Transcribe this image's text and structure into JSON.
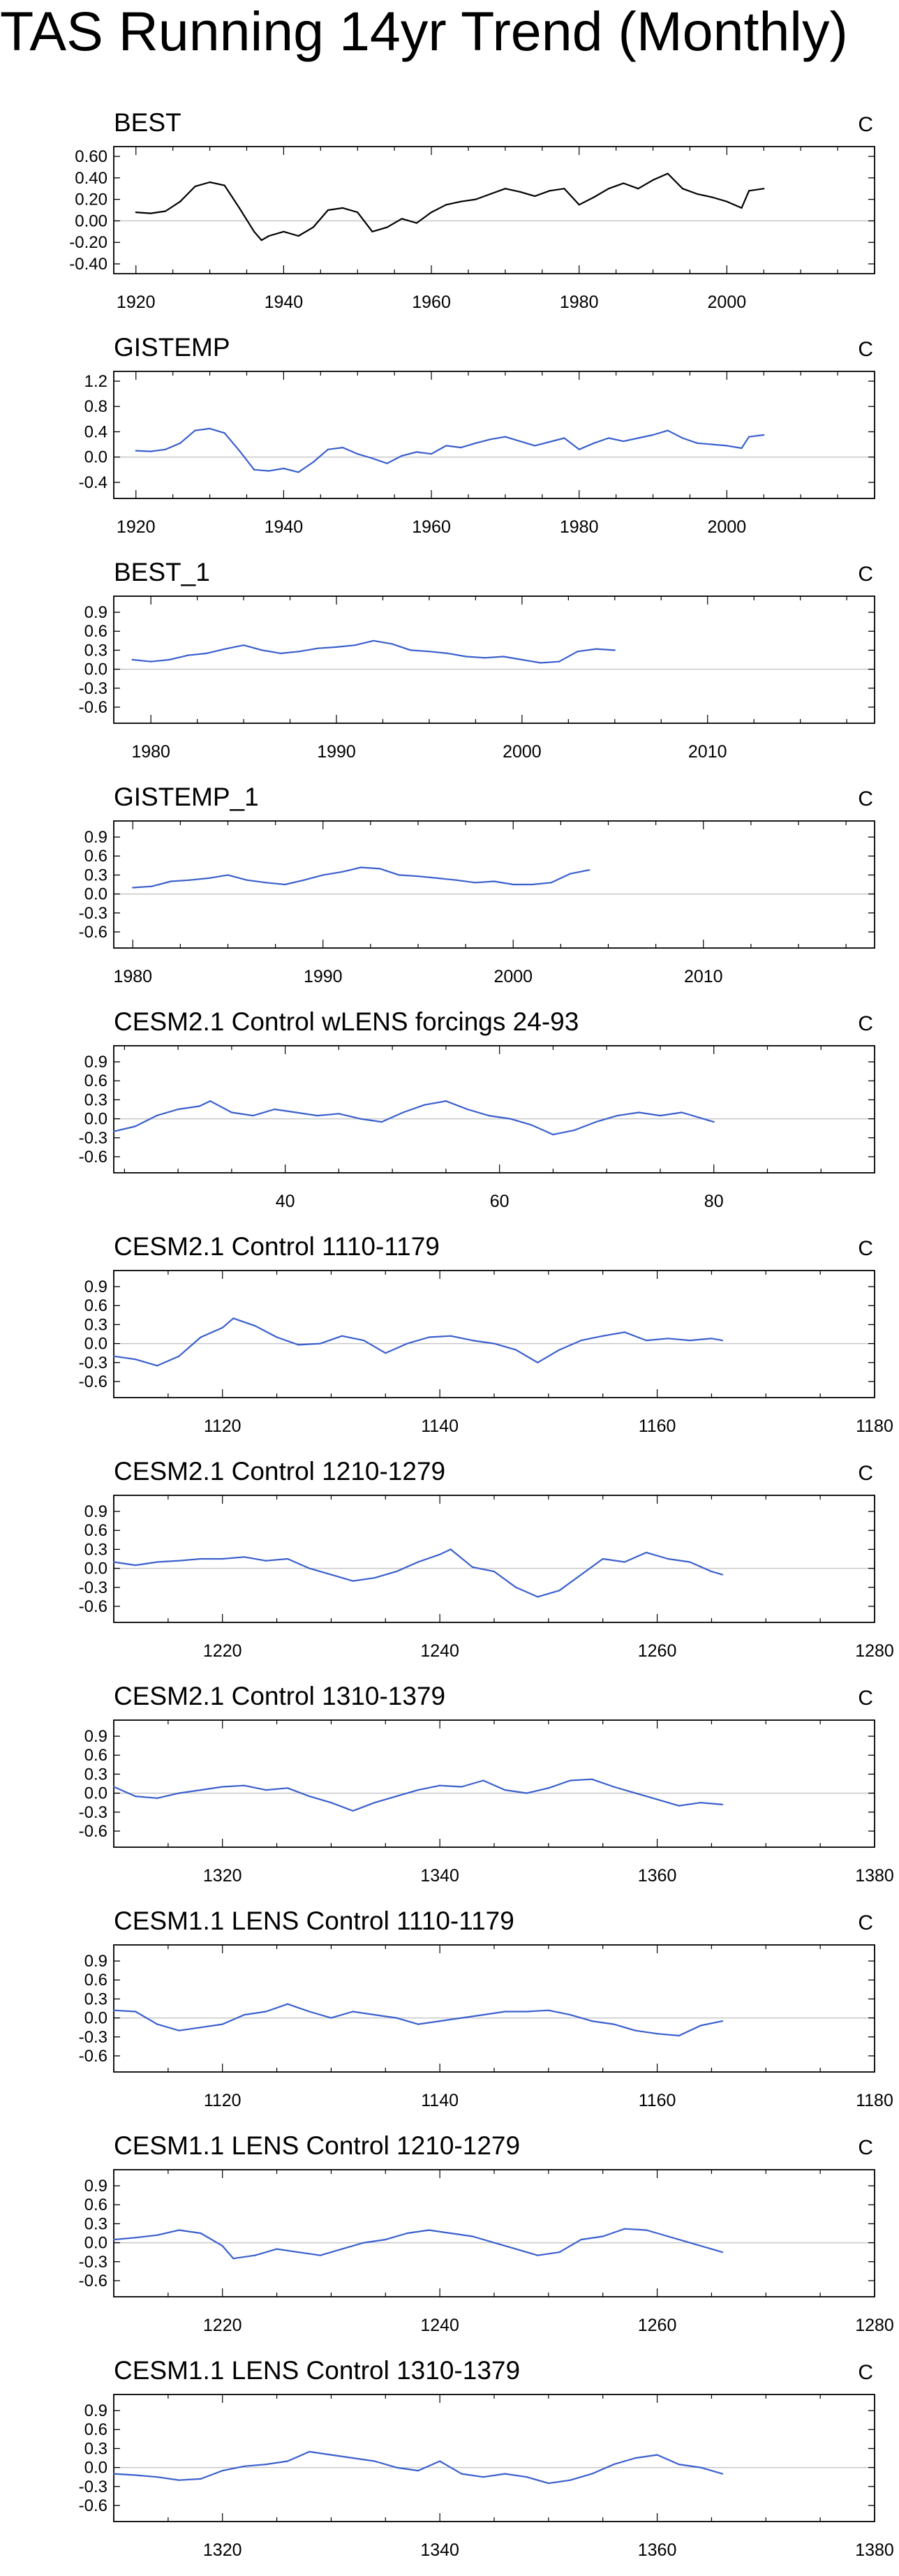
{
  "page_title": "TAS Running 14yr Trend (Monthly)",
  "colors": {
    "black_series": "#000000",
    "blue_series": "#3a5fcd",
    "zero_line": "#c8c8c8",
    "frame": "#000000"
  },
  "chart_data": [
    {
      "type": "line",
      "title": "BEST",
      "units": "C",
      "xlim": [
        1917,
        2020
      ],
      "ylim": [
        -0.4,
        0.6
      ],
      "xticks": [
        1920,
        1940,
        1960,
        1980,
        2000
      ],
      "yticks": [
        -0.4,
        -0.2,
        0.0,
        0.2,
        0.4,
        0.6
      ],
      "ytick_labels": [
        "-0.40",
        "-0.20",
        "0.00",
        "0.20",
        "0.40",
        "0.60"
      ],
      "series": [
        {
          "color": "black",
          "x": [
            1920,
            1922,
            1924,
            1926,
            1928,
            1930,
            1932,
            1934,
            1936,
            1937,
            1938,
            1940,
            1942,
            1944,
            1946,
            1948,
            1950,
            1952,
            1954,
            1956,
            1958,
            1960,
            1962,
            1964,
            1966,
            1968,
            1970,
            1972,
            1974,
            1976,
            1978,
            1980,
            1982,
            1984,
            1986,
            1988,
            1990,
            1992,
            1994,
            1996,
            1998,
            2000,
            2002,
            2003,
            2005
          ],
          "y": [
            0.08,
            0.07,
            0.09,
            0.18,
            0.32,
            0.36,
            0.33,
            0.12,
            -0.1,
            -0.18,
            -0.14,
            -0.1,
            -0.14,
            -0.06,
            0.1,
            0.12,
            0.08,
            -0.1,
            -0.06,
            0.02,
            -0.02,
            0.08,
            0.15,
            0.18,
            0.2,
            0.25,
            0.3,
            0.27,
            0.23,
            0.28,
            0.3,
            0.15,
            0.22,
            0.3,
            0.35,
            0.3,
            0.38,
            0.44,
            0.3,
            0.25,
            0.22,
            0.18,
            0.12,
            0.28,
            0.3
          ]
        }
      ]
    },
    {
      "type": "line",
      "title": "GISTEMP",
      "units": "C",
      "xlim": [
        1917,
        2020
      ],
      "ylim": [
        -0.5,
        1.2
      ],
      "xticks": [
        1920,
        1940,
        1960,
        1980,
        2000
      ],
      "yticks": [
        -0.4,
        0.0,
        0.4,
        0.8,
        1.2
      ],
      "ytick_labels": [
        "-0.4",
        "0.0",
        "0.4",
        "0.8",
        "1.2"
      ],
      "series": [
        {
          "color": "blue",
          "x": [
            1920,
            1922,
            1924,
            1926,
            1928,
            1930,
            1932,
            1934,
            1936,
            1938,
            1940,
            1942,
            1944,
            1946,
            1948,
            1950,
            1952,
            1954,
            1956,
            1958,
            1960,
            1962,
            1964,
            1966,
            1968,
            1970,
            1972,
            1974,
            1976,
            1978,
            1980,
            1982,
            1984,
            1986,
            1988,
            1990,
            1992,
            1994,
            1996,
            1998,
            2000,
            2002,
            2003,
            2005
          ],
          "y": [
            0.1,
            0.09,
            0.12,
            0.22,
            0.42,
            0.45,
            0.38,
            0.1,
            -0.2,
            -0.22,
            -0.18,
            -0.24,
            -0.08,
            0.12,
            0.15,
            0.05,
            -0.02,
            -0.1,
            0.02,
            0.08,
            0.05,
            0.18,
            0.15,
            0.22,
            0.28,
            0.32,
            0.25,
            0.18,
            0.24,
            0.3,
            0.12,
            0.22,
            0.3,
            0.25,
            0.3,
            0.35,
            0.42,
            0.3,
            0.22,
            0.2,
            0.18,
            0.14,
            0.32,
            0.35
          ]
        }
      ]
    },
    {
      "type": "line",
      "title": "BEST_1",
      "units": "C",
      "xlim": [
        1978,
        2019
      ],
      "ylim": [
        -0.7,
        1.0
      ],
      "xticks": [
        1980,
        1990,
        2000,
        2010
      ],
      "yticks": [
        -0.6,
        -0.3,
        0.0,
        0.3,
        0.6,
        0.9
      ],
      "ytick_labels": [
        "-0.6",
        "-0.3",
        "0.0",
        "0.3",
        "0.6",
        "0.9"
      ],
      "series": [
        {
          "color": "blue",
          "x": [
            1979,
            1980,
            1981,
            1982,
            1983,
            1984,
            1985,
            1986,
            1987,
            1988,
            1989,
            1990,
            1991,
            1992,
            1993,
            1994,
            1995,
            1996,
            1997,
            1998,
            1999,
            2000,
            2001,
            2002,
            2003,
            2004,
            2005
          ],
          "y": [
            0.15,
            0.12,
            0.15,
            0.22,
            0.25,
            0.32,
            0.38,
            0.3,
            0.25,
            0.28,
            0.33,
            0.35,
            0.38,
            0.45,
            0.4,
            0.3,
            0.28,
            0.25,
            0.2,
            0.18,
            0.2,
            0.15,
            0.1,
            0.12,
            0.28,
            0.32,
            0.3
          ]
        }
      ]
    },
    {
      "type": "line",
      "title": "GISTEMP_1",
      "units": "C",
      "xlim": [
        1979,
        2019
      ],
      "ylim": [
        -0.7,
        1.0
      ],
      "xticks": [
        1980,
        1990,
        2000,
        2010
      ],
      "yticks": [
        -0.6,
        -0.3,
        0.0,
        0.3,
        0.6,
        0.9
      ],
      "ytick_labels": [
        "-0.6",
        "-0.3",
        "0.0",
        "0.3",
        "0.6",
        "0.9"
      ],
      "series": [
        {
          "color": "blue",
          "x": [
            1980,
            1981,
            1982,
            1983,
            1984,
            1985,
            1986,
            1987,
            1988,
            1989,
            1990,
            1991,
            1992,
            1993,
            1994,
            1995,
            1996,
            1997,
            1998,
            1999,
            2000,
            2001,
            2002,
            2003,
            2004
          ],
          "y": [
            0.1,
            0.12,
            0.2,
            0.22,
            0.25,
            0.3,
            0.22,
            0.18,
            0.15,
            0.22,
            0.3,
            0.35,
            0.42,
            0.4,
            0.3,
            0.28,
            0.25,
            0.22,
            0.18,
            0.2,
            0.15,
            0.15,
            0.18,
            0.32,
            0.38
          ]
        }
      ]
    },
    {
      "type": "line",
      "title": "CESM2.1 Control wLENS forcings 24-93",
      "units": "C",
      "xlim": [
        24,
        95
      ],
      "ylim": [
        -0.7,
        1.0
      ],
      "xticks": [
        40,
        60,
        80
      ],
      "yticks": [
        -0.6,
        -0.3,
        0.0,
        0.3,
        0.6,
        0.9
      ],
      "ytick_labels": [
        "-0.6",
        "-0.3",
        "0.0",
        "0.3",
        "0.6",
        "0.9"
      ],
      "series": [
        {
          "color": "blue",
          "x": [
            24,
            26,
            28,
            30,
            32,
            33,
            35,
            37,
            39,
            41,
            43,
            45,
            47,
            49,
            51,
            53,
            55,
            57,
            59,
            61,
            63,
            65,
            67,
            69,
            71,
            73,
            75,
            77,
            79,
            80
          ],
          "y": [
            -0.2,
            -0.12,
            0.05,
            0.15,
            0.2,
            0.28,
            0.1,
            0.05,
            0.15,
            0.1,
            0.05,
            0.08,
            0.0,
            -0.05,
            0.1,
            0.22,
            0.28,
            0.15,
            0.05,
            0.0,
            -0.1,
            -0.25,
            -0.18,
            -0.05,
            0.05,
            0.1,
            0.05,
            0.1,
            0.0,
            -0.05
          ]
        }
      ]
    },
    {
      "type": "line",
      "title": "CESM2.1 Control 1110-1179",
      "units": "C",
      "xlim": [
        1110,
        1180
      ],
      "ylim": [
        -0.7,
        1.0
      ],
      "xticks": [
        1120,
        1140,
        1160,
        1180
      ],
      "yticks": [
        -0.6,
        -0.3,
        0.0,
        0.3,
        0.6,
        0.9
      ],
      "ytick_labels": [
        "-0.6",
        "-0.3",
        "0.0",
        "0.3",
        "0.6",
        "0.9"
      ],
      "series": [
        {
          "color": "blue",
          "x": [
            1110,
            1112,
            1114,
            1116,
            1118,
            1120,
            1121,
            1123,
            1125,
            1127,
            1129,
            1131,
            1133,
            1135,
            1137,
            1139,
            1141,
            1143,
            1145,
            1147,
            1149,
            1151,
            1153,
            1155,
            1157,
            1159,
            1161,
            1163,
            1165,
            1166
          ],
          "y": [
            -0.2,
            -0.25,
            -0.35,
            -0.2,
            0.1,
            0.25,
            0.4,
            0.28,
            0.1,
            -0.02,
            0.0,
            0.12,
            0.05,
            -0.15,
            0.0,
            0.1,
            0.12,
            0.05,
            0.0,
            -0.1,
            -0.3,
            -0.1,
            0.05,
            0.12,
            0.18,
            0.05,
            0.08,
            0.05,
            0.08,
            0.05
          ]
        }
      ]
    },
    {
      "type": "line",
      "title": "CESM2.1 Control 1210-1279",
      "units": "C",
      "xlim": [
        1210,
        1280
      ],
      "ylim": [
        -0.7,
        1.0
      ],
      "xticks": [
        1220,
        1240,
        1260,
        1280
      ],
      "yticks": [
        -0.6,
        -0.3,
        0.0,
        0.3,
        0.6,
        0.9
      ],
      "ytick_labels": [
        "-0.6",
        "-0.3",
        "0.0",
        "0.3",
        "0.6",
        "0.9"
      ],
      "series": [
        {
          "color": "blue",
          "x": [
            1210,
            1212,
            1214,
            1216,
            1218,
            1220,
            1222,
            1224,
            1226,
            1228,
            1230,
            1232,
            1234,
            1236,
            1238,
            1240,
            1241,
            1243,
            1245,
            1247,
            1249,
            1251,
            1253,
            1255,
            1257,
            1259,
            1261,
            1263,
            1265,
            1266
          ],
          "y": [
            0.1,
            0.05,
            0.1,
            0.12,
            0.15,
            0.15,
            0.18,
            0.12,
            0.15,
            0.0,
            -0.1,
            -0.2,
            -0.15,
            -0.05,
            0.1,
            0.22,
            0.3,
            0.02,
            -0.05,
            -0.3,
            -0.45,
            -0.35,
            -0.1,
            0.15,
            0.1,
            0.25,
            0.15,
            0.1,
            -0.05,
            -0.1
          ]
        }
      ]
    },
    {
      "type": "line",
      "title": "CESM2.1 Control 1310-1379",
      "units": "C",
      "xlim": [
        1310,
        1380
      ],
      "ylim": [
        -0.7,
        1.0
      ],
      "xticks": [
        1320,
        1340,
        1360,
        1380
      ],
      "yticks": [
        -0.6,
        -0.3,
        0.0,
        0.3,
        0.6,
        0.9
      ],
      "ytick_labels": [
        "-0.6",
        "-0.3",
        "0.0",
        "0.3",
        "0.6",
        "0.9"
      ],
      "series": [
        {
          "color": "blue",
          "x": [
            1310,
            1312,
            1314,
            1316,
            1318,
            1320,
            1322,
            1324,
            1326,
            1328,
            1330,
            1332,
            1334,
            1336,
            1338,
            1340,
            1342,
            1344,
            1346,
            1348,
            1350,
            1352,
            1354,
            1356,
            1358,
            1360,
            1362,
            1364,
            1366
          ],
          "y": [
            0.1,
            -0.05,
            -0.08,
            0.0,
            0.05,
            0.1,
            0.12,
            0.05,
            0.08,
            -0.05,
            -0.15,
            -0.28,
            -0.15,
            -0.05,
            0.05,
            0.12,
            0.1,
            0.2,
            0.05,
            0.0,
            0.08,
            0.2,
            0.22,
            0.1,
            0.0,
            -0.1,
            -0.2,
            -0.15,
            -0.18
          ]
        }
      ]
    },
    {
      "type": "line",
      "title": "CESM1.1 LENS Control 1110-1179",
      "units": "C",
      "xlim": [
        1110,
        1180
      ],
      "ylim": [
        -0.7,
        1.0
      ],
      "xticks": [
        1120,
        1140,
        1160,
        1180
      ],
      "yticks": [
        -0.6,
        -0.3,
        0.0,
        0.3,
        0.6,
        0.9
      ],
      "ytick_labels": [
        "-0.6",
        "-0.3",
        "0.0",
        "0.3",
        "0.6",
        "0.9"
      ],
      "series": [
        {
          "color": "blue",
          "x": [
            1110,
            1112,
            1114,
            1116,
            1118,
            1120,
            1122,
            1124,
            1126,
            1128,
            1130,
            1132,
            1134,
            1136,
            1138,
            1140,
            1142,
            1144,
            1146,
            1148,
            1150,
            1152,
            1154,
            1156,
            1158,
            1160,
            1162,
            1164,
            1166
          ],
          "y": [
            0.12,
            0.1,
            -0.1,
            -0.2,
            -0.15,
            -0.1,
            0.05,
            0.1,
            0.22,
            0.1,
            0.0,
            0.1,
            0.05,
            0.0,
            -0.1,
            -0.05,
            0.0,
            0.05,
            0.1,
            0.1,
            0.12,
            0.05,
            -0.05,
            -0.1,
            -0.2,
            -0.25,
            -0.28,
            -0.12,
            -0.05
          ]
        }
      ]
    },
    {
      "type": "line",
      "title": "CESM1.1 LENS Control 1210-1279",
      "units": "C",
      "xlim": [
        1210,
        1280
      ],
      "ylim": [
        -0.7,
        1.0
      ],
      "xticks": [
        1220,
        1240,
        1260,
        1280
      ],
      "yticks": [
        -0.6,
        -0.3,
        0.0,
        0.3,
        0.6,
        0.9
      ],
      "ytick_labels": [
        "-0.6",
        "-0.3",
        "0.0",
        "0.3",
        "0.6",
        "0.9"
      ],
      "series": [
        {
          "color": "blue",
          "x": [
            1210,
            1212,
            1214,
            1216,
            1218,
            1220,
            1221,
            1223,
            1225,
            1227,
            1229,
            1231,
            1233,
            1235,
            1237,
            1239,
            1241,
            1243,
            1245,
            1247,
            1249,
            1251,
            1253,
            1255,
            1257,
            1259,
            1261,
            1263,
            1265,
            1266
          ],
          "y": [
            0.05,
            0.08,
            0.12,
            0.2,
            0.15,
            -0.05,
            -0.25,
            -0.2,
            -0.1,
            -0.15,
            -0.2,
            -0.1,
            0.0,
            0.05,
            0.15,
            0.2,
            0.15,
            0.1,
            0.0,
            -0.1,
            -0.2,
            -0.15,
            0.05,
            0.1,
            0.22,
            0.2,
            0.1,
            0.0,
            -0.1,
            -0.15
          ]
        }
      ]
    },
    {
      "type": "line",
      "title": "CESM1.1 LENS Control 1310-1379",
      "units": "C",
      "xlim": [
        1310,
        1380
      ],
      "ylim": [
        -0.7,
        1.0
      ],
      "xticks": [
        1320,
        1340,
        1360,
        1380
      ],
      "yticks": [
        -0.6,
        -0.3,
        0.0,
        0.3,
        0.6,
        0.9
      ],
      "ytick_labels": [
        "-0.6",
        "-0.3",
        "0.0",
        "0.3",
        "0.6",
        "0.9"
      ],
      "series": [
        {
          "color": "blue",
          "x": [
            1310,
            1312,
            1314,
            1316,
            1318,
            1320,
            1322,
            1324,
            1326,
            1328,
            1330,
            1332,
            1334,
            1336,
            1338,
            1340,
            1342,
            1344,
            1346,
            1348,
            1350,
            1352,
            1354,
            1356,
            1358,
            1360,
            1362,
            1364,
            1366
          ],
          "y": [
            -0.1,
            -0.12,
            -0.15,
            -0.2,
            -0.18,
            -0.05,
            0.02,
            0.05,
            0.1,
            0.25,
            0.2,
            0.15,
            0.1,
            0.0,
            -0.05,
            0.1,
            -0.1,
            -0.15,
            -0.1,
            -0.15,
            -0.25,
            -0.2,
            -0.1,
            0.05,
            0.15,
            0.2,
            0.05,
            0.0,
            -0.1
          ]
        }
      ]
    }
  ]
}
